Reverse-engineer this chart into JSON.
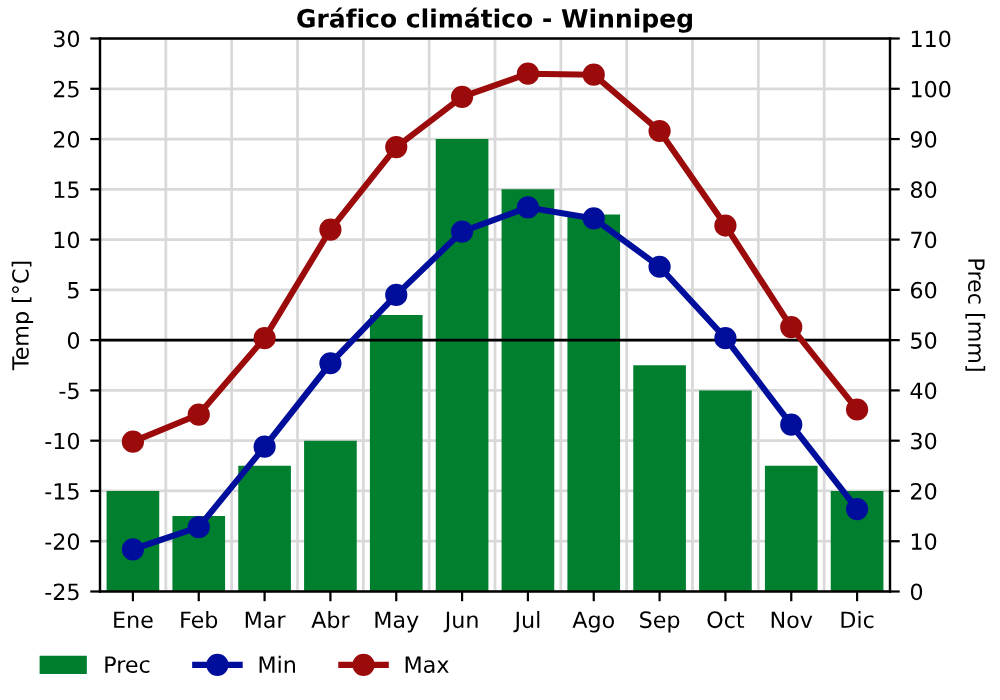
{
  "chart_data": {
    "type": "line",
    "title": "Gráfico climático - Winnipeg",
    "ylabel": "Temp [°C]",
    "y2label": "Prec [mm]",
    "categories": [
      "Ene",
      "Feb",
      "Mar",
      "Abr",
      "May",
      "Jun",
      "Jul",
      "Ago",
      "Sep",
      "Oct",
      "Nov",
      "Dic"
    ],
    "series": [
      {
        "name": "Prec",
        "type": "bar",
        "axis": "y2",
        "color": "#007f2f",
        "values": [
          20,
          15,
          25,
          30,
          55,
          90,
          80,
          75,
          45,
          40,
          25,
          20
        ]
      },
      {
        "name": "Min",
        "color": "#000e9c",
        "values": [
          -20.8,
          -18.6,
          -10.6,
          -2.3,
          4.5,
          10.8,
          13.2,
          12.1,
          7.3,
          0.2,
          -8.4,
          -16.8
        ]
      },
      {
        "name": "Max",
        "color": "#9c0b0b",
        "values": [
          -10.1,
          -7.4,
          0.2,
          11.0,
          19.2,
          24.2,
          26.5,
          26.4,
          20.8,
          11.4,
          1.3,
          -6.9
        ]
      }
    ],
    "ylim": [
      -25,
      30
    ],
    "yticks": [
      -25,
      -20,
      -15,
      -10,
      -5,
      0,
      5,
      10,
      15,
      20,
      25,
      30
    ],
    "y2lim": [
      0,
      110
    ],
    "y2ticks": [
      0,
      10,
      20,
      30,
      40,
      50,
      60,
      70,
      80,
      90,
      100,
      110
    ],
    "ref_lines": [
      {
        "axis": "y",
        "value": 0,
        "color": "#000000"
      }
    ],
    "grid": true,
    "legend": "bottom left",
    "marker": "circle",
    "line_style": "solid"
  }
}
